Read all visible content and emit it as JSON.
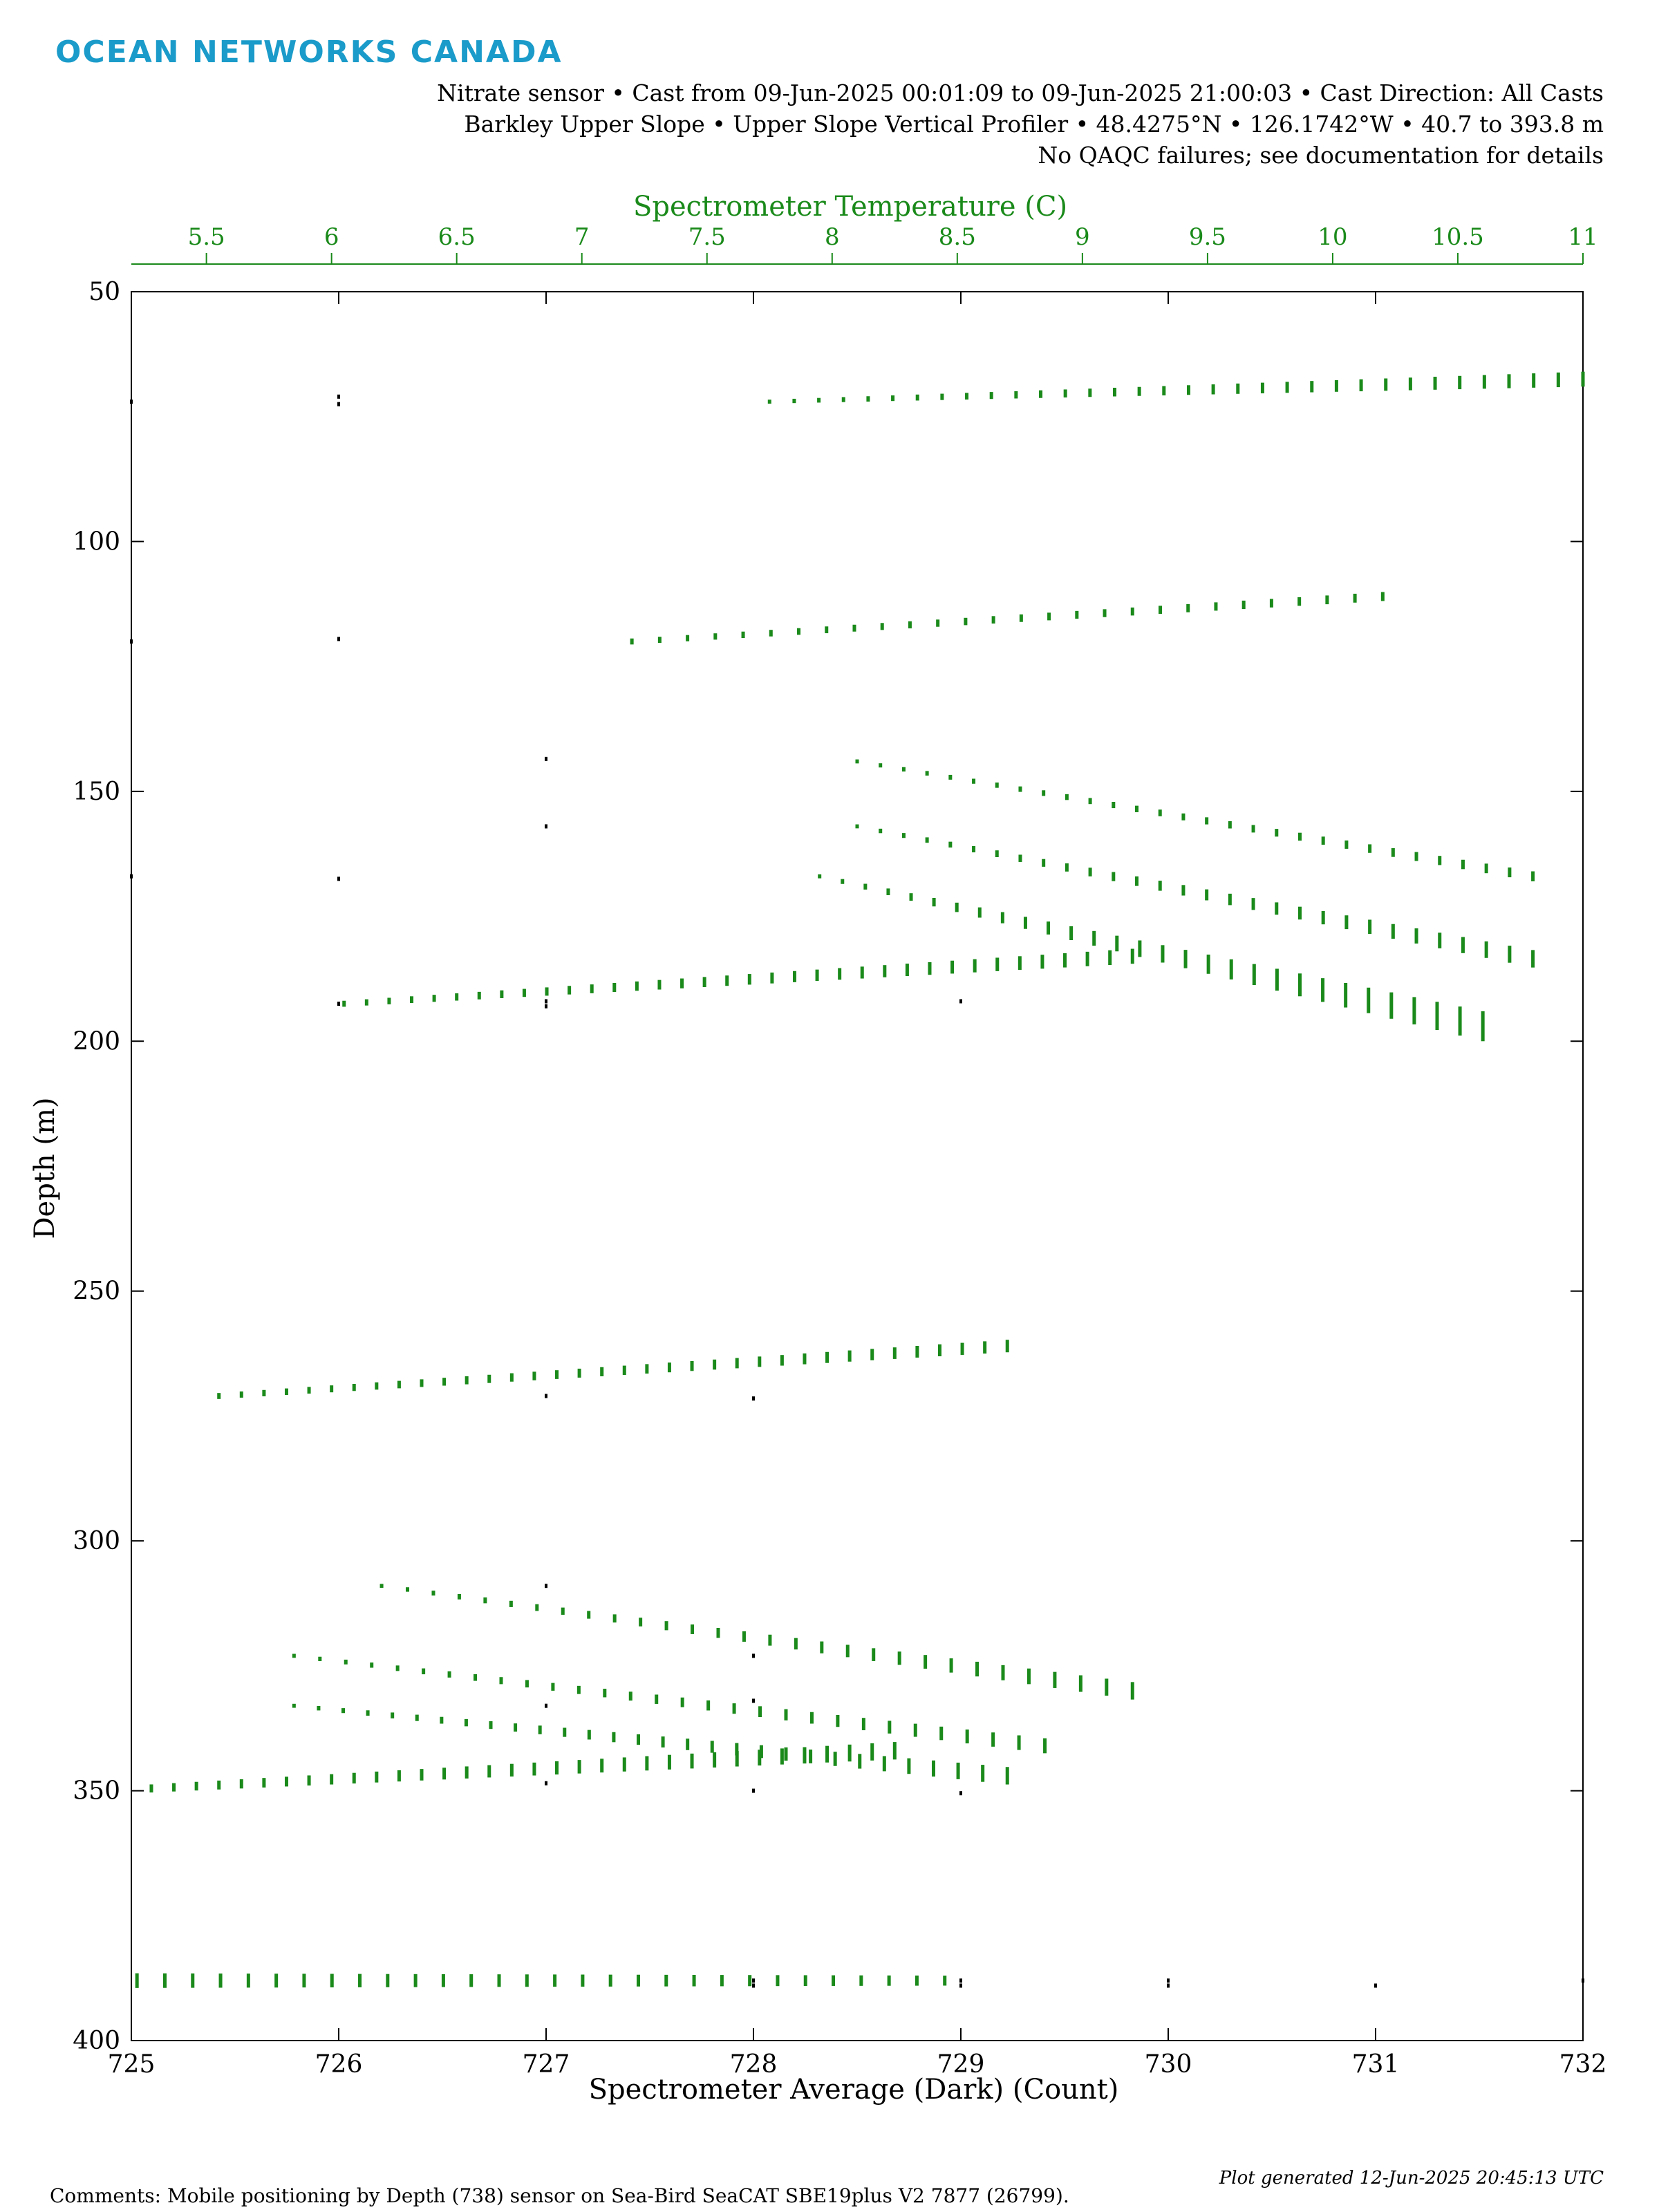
{
  "brand": {
    "logo_text": "OCEAN NETWORKS CANADA",
    "color": "#1a9bc9"
  },
  "header": {
    "line1": "Nitrate sensor • Cast from 09-Jun-2025 00:01:09 to 09-Jun-2025 21:00:03 • Cast Direction: All Casts",
    "line2": "Barkley Upper Slope • Upper Slope Vertical Profiler • 48.4275°N • 126.1742°W • 40.7 to 393.8 m",
    "line3": "No QAQC failures; see documentation for details"
  },
  "footer": {
    "comments": "Comments: Mobile positioning by Depth (738) sensor on Sea-Bird SeaCAT SBE19plus V2 7877 (26799).",
    "generated": "Plot generated 12-Jun-2025 20:45:13 UTC"
  },
  "chart_data": {
    "type": "scatter",
    "xlabel": "Spectrometer Average (Dark) (Count)",
    "ylabel": "Depth (m)",
    "x2label": "Spectrometer Temperature (C)",
    "xlim": [
      725,
      732
    ],
    "ylim": [
      50,
      400
    ],
    "x2lim": [
      5.2,
      11
    ],
    "y_inverted": true,
    "xticks": [
      "725",
      "726",
      "727",
      "728",
      "729",
      "730",
      "731",
      "732"
    ],
    "yticks": [
      "50",
      "100",
      "150",
      "200",
      "250",
      "300",
      "350",
      "400"
    ],
    "x2ticks": [
      "5.5",
      "6",
      "6.5",
      "7",
      "7.5",
      "8",
      "8.5",
      "9",
      "9.5",
      "10",
      "10.5",
      "11"
    ],
    "colors": {
      "primary": "#000000",
      "secondary": "#1a8a1a"
    },
    "series": [
      {
        "axis": "bottom",
        "color": "#000000",
        "points": [
          [
            725,
            72
          ],
          [
            726,
            71
          ],
          [
            726,
            72.5
          ],
          [
            725,
            120
          ],
          [
            726,
            119.5
          ],
          [
            727,
            143.5
          ],
          [
            727,
            157
          ],
          [
            725,
            167
          ],
          [
            726,
            167.5
          ],
          [
            726,
            192.5
          ],
          [
            727,
            192
          ],
          [
            727,
            193
          ],
          [
            729,
            192
          ],
          [
            727,
            271
          ],
          [
            728,
            271.5
          ],
          [
            727,
            309
          ],
          [
            728,
            323
          ],
          [
            727,
            333
          ],
          [
            728,
            332
          ],
          [
            728,
            350
          ],
          [
            727,
            348.5
          ],
          [
            729,
            350.5
          ],
          [
            728,
            388
          ],
          [
            728,
            389
          ],
          [
            729,
            388
          ],
          [
            729,
            389
          ],
          [
            730,
            388
          ],
          [
            730,
            389
          ],
          [
            731,
            389
          ],
          [
            732,
            388
          ]
        ]
      },
      {
        "axis": "top",
        "color": "#1a8a1a",
        "segments": [
          {
            "x_start": 7.75,
            "x_end": 11.0,
            "y_start": 72,
            "y_end": 67.5,
            "n": 34,
            "tick_start": 0.8,
            "tick_end": 3.0
          },
          {
            "x_start": 7.2,
            "x_end": 10.2,
            "y_start": 120,
            "y_end": 111,
            "n": 28,
            "tick_start": 1.2,
            "tick_end": 1.8
          },
          {
            "x_start": 8.1,
            "x_end": 10.8,
            "y_start": 144,
            "y_end": 167,
            "n": 30,
            "tick_start": 0.8,
            "tick_end": 2.0
          },
          {
            "x_start": 8.1,
            "x_end": 10.8,
            "y_start": 157,
            "y_end": 183.5,
            "n": 30,
            "tick_start": 0.8,
            "tick_end": 3.5
          },
          {
            "x_start": 7.95,
            "x_end": 10.6,
            "y_start": 167,
            "y_end": 197,
            "n": 30,
            "tick_start": 0.8,
            "tick_end": 6.0
          },
          {
            "x_start": 6.05,
            "x_end": 9.2,
            "y_start": 192.5,
            "y_end": 183,
            "n": 36,
            "tick_start": 1.2,
            "tick_end": 3.0
          },
          {
            "x_start": 5.55,
            "x_end": 8.7,
            "y_start": 271,
            "y_end": 261,
            "n": 36,
            "tick_start": 1.2,
            "tick_end": 2.5
          },
          {
            "x_start": 6.2,
            "x_end": 9.2,
            "y_start": 309,
            "y_end": 330,
            "n": 30,
            "tick_start": 0.8,
            "tick_end": 3.5
          },
          {
            "x_start": 5.85,
            "x_end": 8.85,
            "y_start": 323,
            "y_end": 341,
            "n": 30,
            "tick_start": 0.8,
            "tick_end": 3.0
          },
          {
            "x_start": 5.85,
            "x_end": 8.7,
            "y_start": 333,
            "y_end": 347,
            "n": 30,
            "tick_start": 0.8,
            "tick_end": 3.5
          },
          {
            "x_start": 5.1,
            "x_end": 8.25,
            "y_start": 350,
            "y_end": 342,
            "n": 36,
            "tick_start": 1.5,
            "tick_end": 3.5
          },
          {
            "x_start": 5.0,
            "x_end": 8.45,
            "y_start": 388,
            "y_end": 388,
            "n": 32,
            "tick_start": 3.0,
            "tick_end": 2.0
          }
        ]
      }
    ]
  }
}
